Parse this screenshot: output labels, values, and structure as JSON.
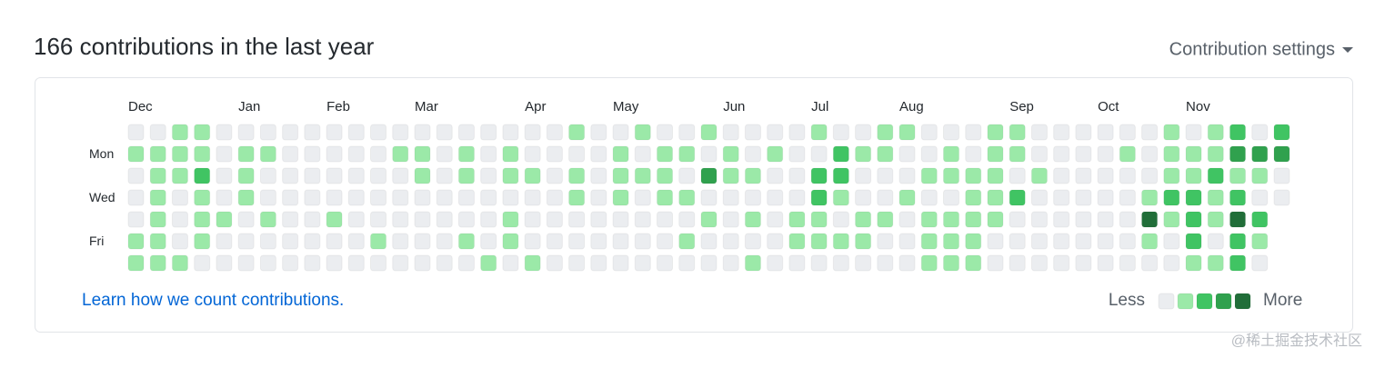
{
  "header": {
    "title": "166 contributions in the last year",
    "settings": "Contribution settings"
  },
  "graph": {
    "months": [
      {
        "label": "Dec",
        "week": 0
      },
      {
        "label": "Jan",
        "week": 5
      },
      {
        "label": "Feb",
        "week": 9
      },
      {
        "label": "Mar",
        "week": 13
      },
      {
        "label": "Apr",
        "week": 18
      },
      {
        "label": "May",
        "week": 22
      },
      {
        "label": "Jun",
        "week": 27
      },
      {
        "label": "Jul",
        "week": 31
      },
      {
        "label": "Aug",
        "week": 35
      },
      {
        "label": "Sep",
        "week": 40
      },
      {
        "label": "Oct",
        "week": 44
      },
      {
        "label": "Nov",
        "week": 48
      }
    ],
    "days": [
      {
        "label": "Mon",
        "row": 1
      },
      {
        "label": "Wed",
        "row": 3
      },
      {
        "label": "Fri",
        "row": 5
      }
    ],
    "level_colors": [
      "#ebedf0",
      "#9be9a8",
      "#40c463",
      "#30a14e",
      "#216e39"
    ],
    "rows": [
      [
        0,
        0,
        1,
        1,
        0,
        0,
        0,
        0,
        0,
        0,
        0,
        0,
        0,
        0,
        0,
        0,
        0,
        0,
        0,
        0,
        1,
        0,
        0,
        1,
        0,
        0,
        1,
        0,
        0,
        0,
        0,
        1,
        0,
        0,
        1,
        1,
        0,
        0,
        0,
        1,
        1,
        0,
        0,
        0,
        0,
        0,
        0,
        1,
        0,
        1,
        2,
        0,
        2
      ],
      [
        1,
        1,
        1,
        1,
        0,
        1,
        1,
        0,
        0,
        0,
        0,
        0,
        1,
        1,
        0,
        1,
        0,
        1,
        0,
        0,
        0,
        0,
        1,
        0,
        1,
        1,
        0,
        1,
        0,
        1,
        0,
        0,
        2,
        1,
        1,
        0,
        0,
        1,
        0,
        1,
        1,
        0,
        0,
        0,
        0,
        1,
        0,
        1,
        1,
        1,
        3,
        3,
        3
      ],
      [
        0,
        1,
        1,
        2,
        0,
        1,
        0,
        0,
        0,
        0,
        0,
        0,
        0,
        1,
        0,
        1,
        0,
        1,
        1,
        0,
        1,
        0,
        1,
        1,
        1,
        0,
        3,
        1,
        1,
        0,
        0,
        2,
        2,
        0,
        0,
        0,
        1,
        1,
        1,
        1,
        0,
        1,
        0,
        0,
        0,
        0,
        0,
        1,
        1,
        2,
        1,
        1,
        0
      ],
      [
        0,
        1,
        0,
        1,
        0,
        1,
        0,
        0,
        0,
        0,
        0,
        0,
        0,
        0,
        0,
        0,
        0,
        0,
        0,
        0,
        1,
        0,
        1,
        0,
        1,
        1,
        0,
        0,
        0,
        0,
        0,
        2,
        1,
        0,
        0,
        1,
        0,
        0,
        1,
        1,
        2,
        0,
        0,
        0,
        0,
        0,
        1,
        2,
        2,
        1,
        2,
        0,
        0
      ],
      [
        0,
        1,
        0,
        1,
        1,
        0,
        1,
        0,
        0,
        1,
        0,
        0,
        0,
        0,
        0,
        0,
        0,
        1,
        0,
        0,
        0,
        0,
        0,
        0,
        0,
        0,
        1,
        0,
        1,
        0,
        1,
        1,
        0,
        1,
        1,
        0,
        1,
        1,
        1,
        1,
        0,
        0,
        0,
        0,
        0,
        0,
        4,
        1,
        2,
        1,
        4,
        2
      ],
      [
        1,
        1,
        0,
        1,
        0,
        0,
        0,
        0,
        0,
        0,
        0,
        1,
        0,
        0,
        0,
        1,
        0,
        1,
        0,
        0,
        0,
        0,
        0,
        0,
        0,
        1,
        0,
        0,
        0,
        0,
        1,
        1,
        1,
        1,
        0,
        0,
        1,
        1,
        1,
        0,
        0,
        0,
        0,
        0,
        0,
        0,
        1,
        0,
        2,
        0,
        2,
        1
      ],
      [
        1,
        1,
        1,
        0,
        0,
        0,
        0,
        0,
        0,
        0,
        0,
        0,
        0,
        0,
        0,
        0,
        1,
        0,
        1,
        0,
        0,
        0,
        0,
        0,
        0,
        0,
        0,
        0,
        1,
        0,
        0,
        0,
        0,
        0,
        0,
        0,
        1,
        1,
        1,
        0,
        0,
        0,
        0,
        0,
        0,
        0,
        0,
        0,
        1,
        1,
        2,
        0
      ]
    ]
  },
  "footer": {
    "link": "Learn how we count contributions.",
    "less": "Less",
    "more": "More"
  },
  "watermark": "@稀土掘金技术社区"
}
